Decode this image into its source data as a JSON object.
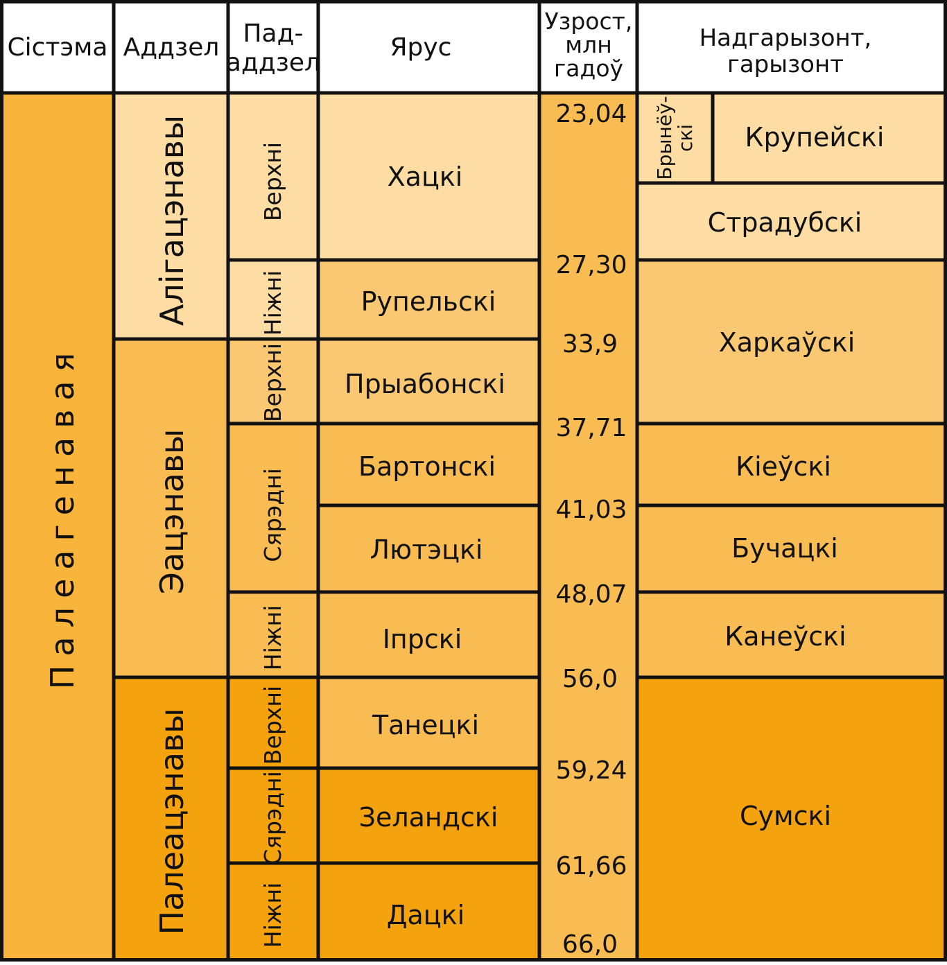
{
  "headers": {
    "system": "Сістэма",
    "division": "Аддзел",
    "subdivision": [
      "Пад-",
      "аддзел"
    ],
    "stage": "Ярус",
    "age": [
      "Узрост,",
      "млн",
      "гадоў"
    ],
    "horizon": [
      "Надгарызонт,",
      "гарызонт"
    ]
  },
  "system": {
    "label": "Палеагенавая",
    "color": "#F9B43C"
  },
  "divisions": {
    "oligocene": {
      "label": "Алігацэнавы",
      "color": "#FDDDA4"
    },
    "eocene": {
      "label": "Эацэнавы",
      "color": "#F9BC52"
    },
    "paleocene": {
      "label": "Палеацэнавы",
      "color": "#F4A20E"
    }
  },
  "subdivisions": {
    "oligo_upper": "Верхні",
    "oligo_lower": "Ніжні",
    "eo_upper": "Верхні",
    "eo_middle": "Сярэдні",
    "eo_lower": "Ніжні",
    "paleo_upper": "Верхні",
    "paleo_middle": "Сярэдні",
    "paleo_lower": "Ніжні"
  },
  "stages": {
    "chattian": "Хацкі",
    "rupelian": "Рупельскі",
    "priabonian": "Прыабонскі",
    "bartonian": "Бартонскі",
    "lutetian": "Лютэцкі",
    "ypresian": "Іпрскі",
    "thanetian": "Танецкі",
    "selandian": "Зеландскі",
    "danian": "Дацкі"
  },
  "ages": [
    "23,04",
    "27,30",
    "33,9",
    "37,71",
    "41,03",
    "48,07",
    "56,0",
    "59,24",
    "61,66",
    "66,0"
  ],
  "horizons": {
    "brynev": [
      "Брынёў-",
      "скі"
    ],
    "krupei": "Крупейскі",
    "stradub": "Страдубскі",
    "kharkau": "Харкаўскі",
    "kiev": "Кіеўскі",
    "buchak": "Бучацкі",
    "kanev": "Канеўскі",
    "sum": "Сумскі"
  },
  "colors": {
    "oligocene_fill": "#FDDDA4",
    "eocene_upper_fill": "#FAC873",
    "eocene_fill": "#F9BC52",
    "paleocene_fill": "#F4A20E",
    "borders": "#111111"
  }
}
